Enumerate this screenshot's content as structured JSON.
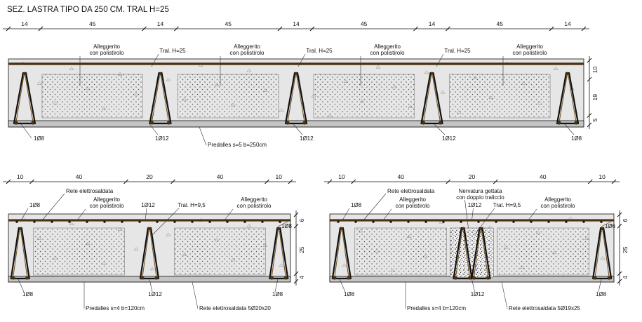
{
  "title": "SEZ. LASTRA TIPO DA 250 CM. TRAL H=25",
  "colors": {
    "slab": "#e6e6e6",
    "predalle": "#c4c4c4",
    "bar": "#4a3410",
    "line": "#111111",
    "leader": "#333333"
  },
  "sections": [
    {
      "dims_top": [
        "14",
        "45",
        "14",
        "45",
        "14",
        "45",
        "14",
        "45",
        "14"
      ],
      "dims_right": [
        "10",
        "19",
        "5"
      ],
      "labels": {
        "lightening": [
          "Alleggerito",
          "con polistirolo"
        ],
        "truss": "Tral. H=25",
        "bar_bottom_edge": "1Ø8",
        "bar_bottom_mid": "1Ø12",
        "predalle": "Predalles s=5 b=250cm"
      }
    },
    {
      "dims_top": [
        "10",
        "40",
        "20",
        "40",
        "10"
      ],
      "dims_right": [
        "6",
        "25",
        "4"
      ],
      "labels": {
        "mesh": "Rete elettrosaldata",
        "lightening": [
          "Alleggerito",
          "con polistirolo"
        ],
        "truss": "Tral. H=9,5",
        "bar_top_edge": "1Ø8",
        "bar_top_mid": "1Ø12",
        "bar_right": "1Ø8",
        "bar_bottom_edge": "1Ø8",
        "bar_bottom_mid": "1Ø12",
        "predalle": "Predalles s=4 b=120cm",
        "mesh_bottom": "Rete elettrosaldata 5Ø20x20"
      }
    },
    {
      "dims_top": [
        "10",
        "40",
        "20",
        "40",
        "10"
      ],
      "dims_right": [
        "6",
        "25",
        "4"
      ],
      "labels": {
        "mesh": "Rete elettrosaldata",
        "lightening": [
          "Alleggerito",
          "con polistirolo"
        ],
        "rib": [
          "Nervatura gettata",
          "con doppio traliccio"
        ],
        "truss": "Tral. H=9,5",
        "bar_top_edge": "1Ø8",
        "bar_top_mid": "1Ø12",
        "bar_right": "1Ø6",
        "bar_bottom_edge": "1Ø8",
        "bar_bottom_mid": "1Ø12",
        "predalle": "Predalles s=4 b=120cm",
        "mesh_bottom": "Rete elettrosaldata 5Ø19x25"
      }
    }
  ]
}
